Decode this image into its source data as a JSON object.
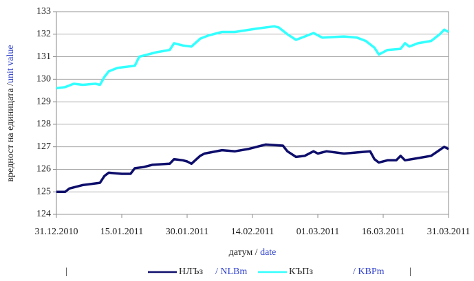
{
  "chart_data": {
    "type": "line",
    "ylabel": {
      "text": "вредност на единицата /",
      "text_en": "unit value"
    },
    "xlabel": {
      "text": "датум /",
      "text_en": "date"
    },
    "ylim": [
      124,
      133
    ],
    "yticks": [
      124,
      125,
      126,
      127,
      128,
      129,
      130,
      131,
      132,
      133
    ],
    "xlim": [
      "2010-12-31",
      "2011-03-31"
    ],
    "xticks": [
      {
        "value": "2010-12-31",
        "label": "31.12.2010"
      },
      {
        "value": "2011-01-15",
        "label": "15.01.2011"
      },
      {
        "value": "2011-01-30",
        "label": "30.01.2011"
      },
      {
        "value": "2011-02-14",
        "label": "14.02.2011"
      },
      {
        "value": "2011-03-01",
        "label": "01.03.2011"
      },
      {
        "value": "2011-03-16",
        "label": "16.03.2011"
      },
      {
        "value": "2011-03-31",
        "label": "31.03.2011"
      }
    ],
    "grid": true,
    "legend": "bottom",
    "series": [
      {
        "name": "НЛЪз",
        "name_en": "/ NLBm",
        "color": "#0d0d6b",
        "x": [
          "2010-12-31",
          "2011-01-02",
          "2011-01-03",
          "2011-01-06",
          "2011-01-10",
          "2011-01-11",
          "2011-01-12",
          "2011-01-15",
          "2011-01-17",
          "2011-01-18",
          "2011-01-20",
          "2011-01-22",
          "2011-01-26",
          "2011-01-27",
          "2011-01-29",
          "2011-01-30",
          "2011-01-31",
          "2011-02-02",
          "2011-02-03",
          "2011-02-07",
          "2011-02-10",
          "2011-02-13",
          "2011-02-15",
          "2011-02-17",
          "2011-02-21",
          "2011-02-22",
          "2011-02-24",
          "2011-02-26",
          "2011-02-28",
          "2011-03-01",
          "2011-03-03",
          "2011-03-07",
          "2011-03-10",
          "2011-03-13",
          "2011-03-14",
          "2011-03-15",
          "2011-03-17",
          "2011-03-19",
          "2011-03-20",
          "2011-03-21",
          "2011-03-24",
          "2011-03-27",
          "2011-03-30",
          "2011-03-31"
        ],
        "values": [
          125.0,
          125.0,
          125.15,
          125.3,
          125.4,
          125.7,
          125.85,
          125.8,
          125.8,
          126.05,
          126.1,
          126.2,
          126.25,
          126.45,
          126.4,
          126.35,
          126.25,
          126.6,
          126.7,
          126.85,
          126.8,
          126.9,
          127.0,
          127.1,
          127.05,
          126.8,
          126.55,
          126.6,
          126.8,
          126.7,
          126.8,
          126.7,
          126.75,
          126.8,
          126.45,
          126.3,
          126.4,
          126.4,
          126.6,
          126.4,
          126.5,
          126.6,
          127.0,
          126.9
        ]
      },
      {
        "name": "КЪПз",
        "name_en": "/ KBPm",
        "color": "#33ffff",
        "x": [
          "2010-12-31",
          "2011-01-02",
          "2011-01-04",
          "2011-01-06",
          "2011-01-09",
          "2011-01-10",
          "2011-01-11",
          "2011-01-12",
          "2011-01-14",
          "2011-01-18",
          "2011-01-19",
          "2011-01-23",
          "2011-01-26",
          "2011-01-27",
          "2011-01-29",
          "2011-01-31",
          "2011-02-02",
          "2011-02-04",
          "2011-02-07",
          "2011-02-10",
          "2011-02-15",
          "2011-02-19",
          "2011-02-20",
          "2011-02-22",
          "2011-02-24",
          "2011-02-26",
          "2011-02-28",
          "2011-03-02",
          "2011-03-07",
          "2011-03-10",
          "2011-03-12",
          "2011-03-14",
          "2011-03-15",
          "2011-03-17",
          "2011-03-20",
          "2011-03-21",
          "2011-03-22",
          "2011-03-24",
          "2011-03-27",
          "2011-03-29",
          "2011-03-30",
          "2011-03-31"
        ],
        "values": [
          129.6,
          129.65,
          129.8,
          129.75,
          129.8,
          129.75,
          130.1,
          130.35,
          130.5,
          130.6,
          131.0,
          131.2,
          131.3,
          131.6,
          131.5,
          131.45,
          131.8,
          131.95,
          132.1,
          132.1,
          132.25,
          132.35,
          132.3,
          132.0,
          131.75,
          131.9,
          132.05,
          131.85,
          131.9,
          131.85,
          131.7,
          131.4,
          131.1,
          131.3,
          131.35,
          131.6,
          131.45,
          131.6,
          131.7,
          132.0,
          132.2,
          132.1
        ]
      }
    ]
  }
}
